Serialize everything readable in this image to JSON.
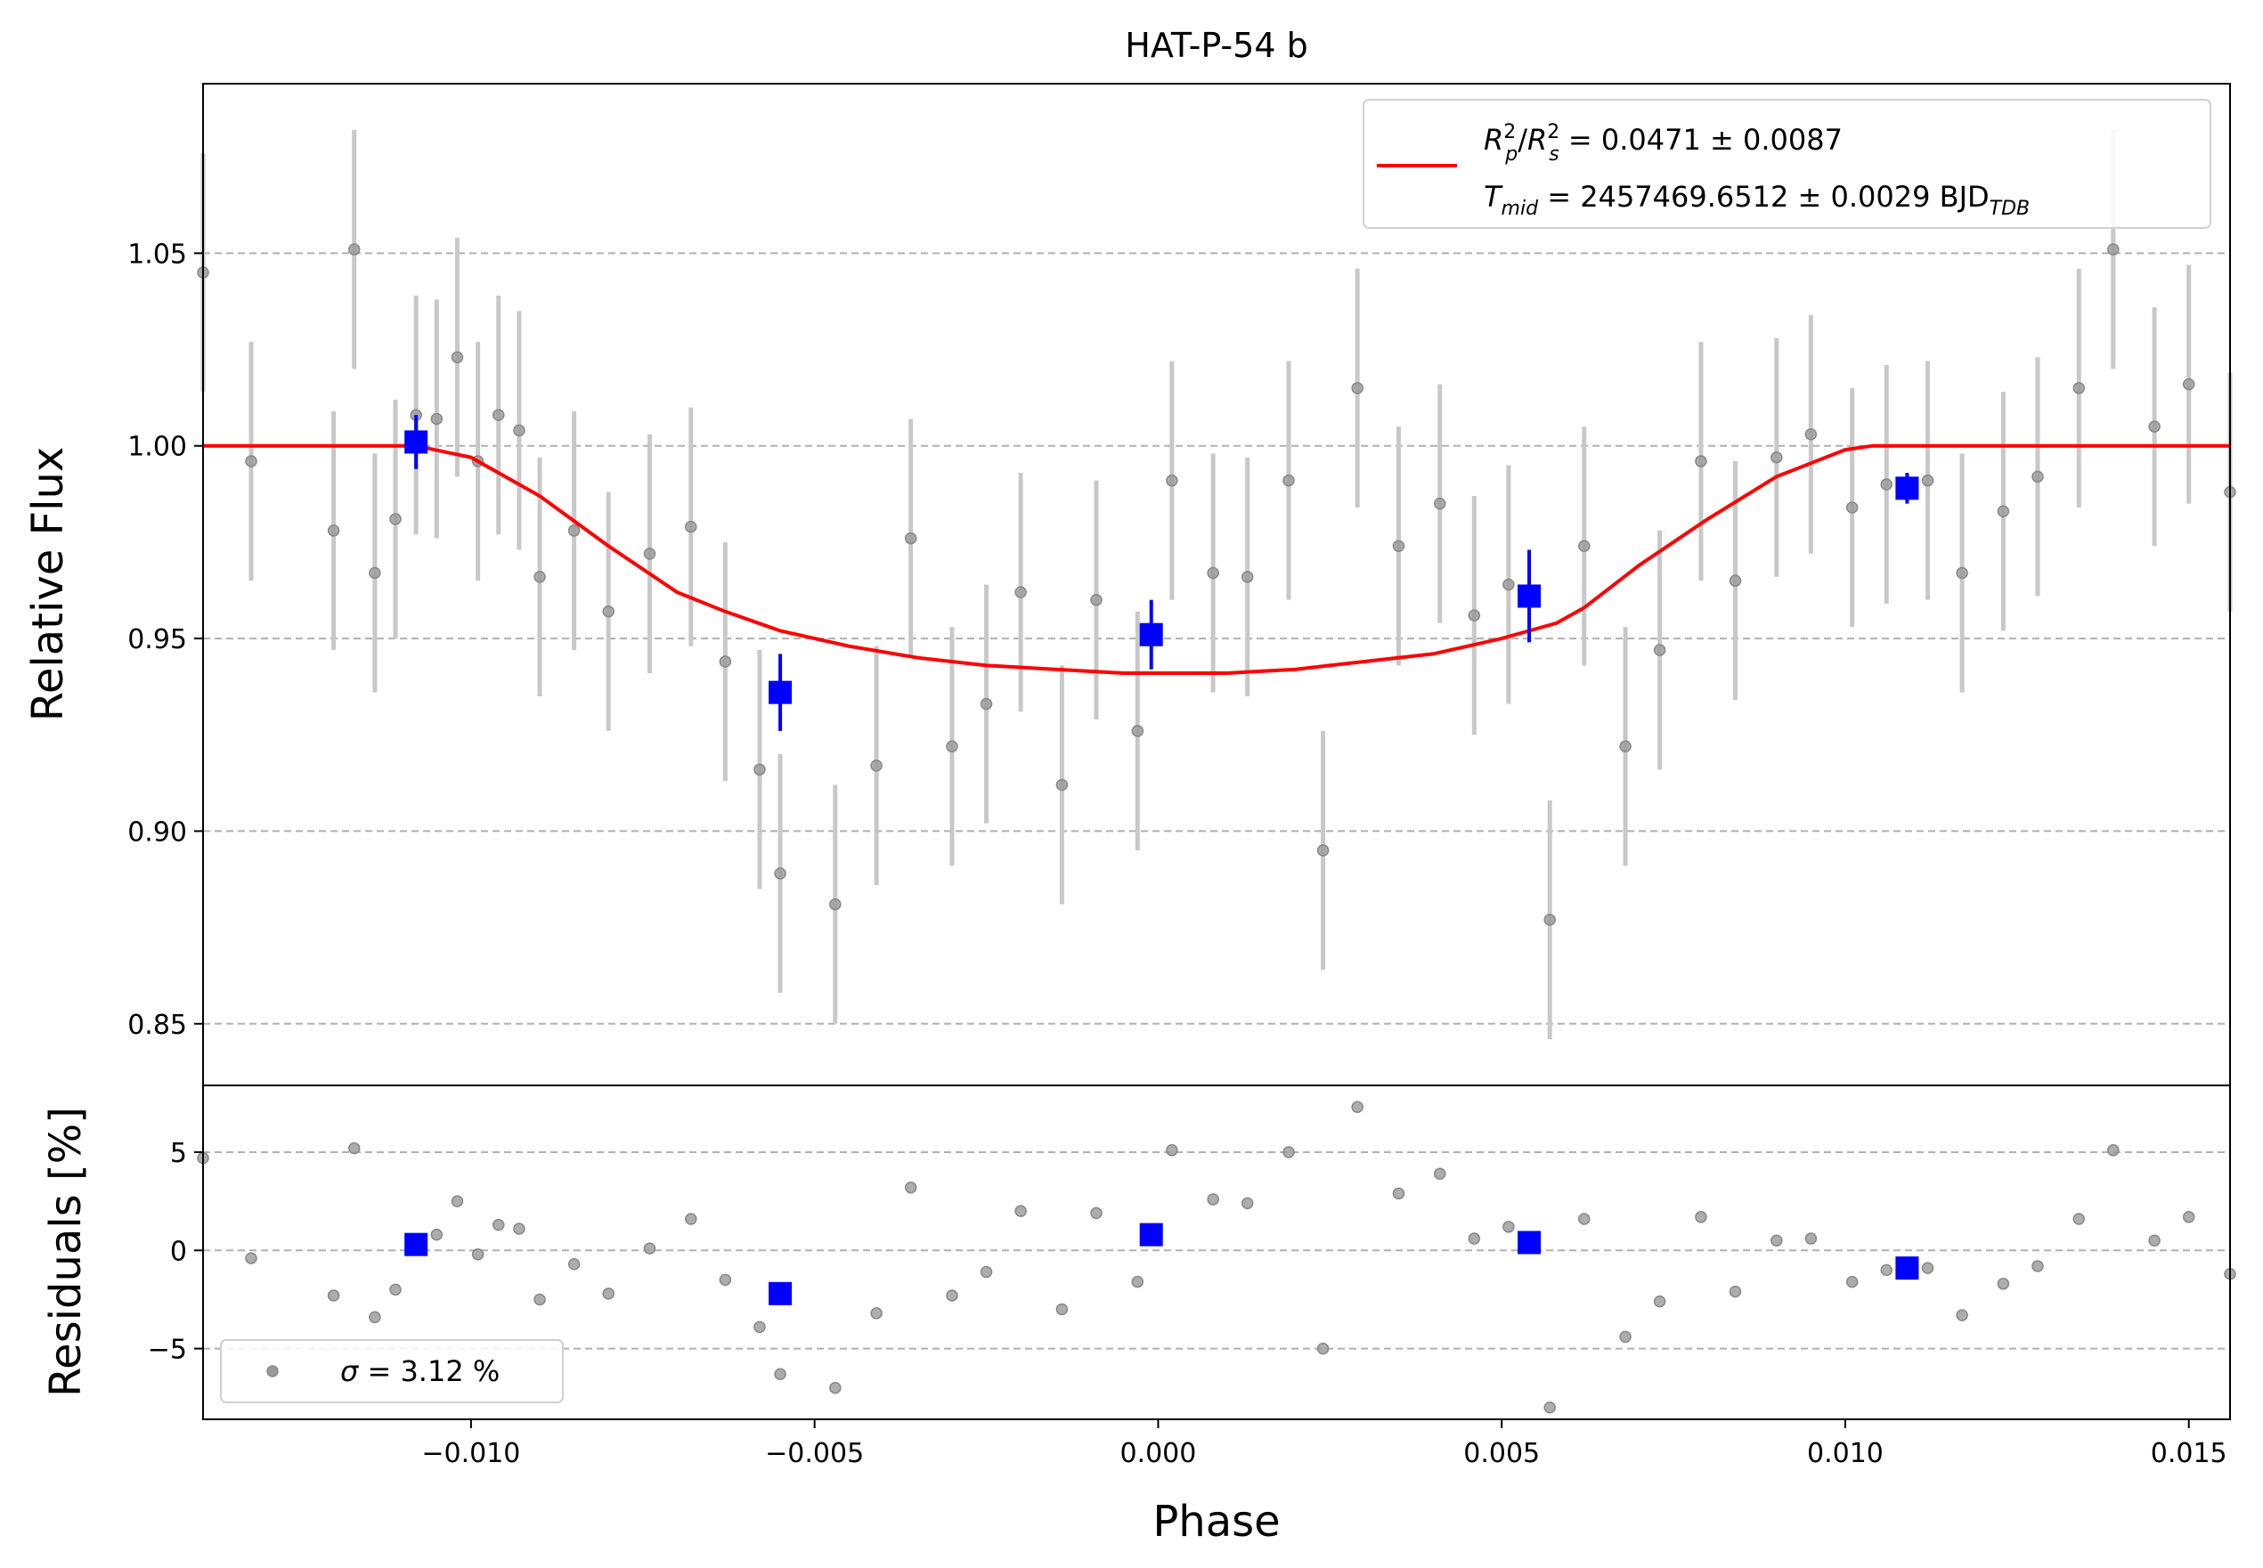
{
  "chart_data": [
    {
      "type": "scatter",
      "panel": "transit",
      "title": "HAT-P-54 b",
      "xlabel": "",
      "ylabel": "Relative Flux",
      "xlim": [
        -0.0139,
        0.0156
      ],
      "ylim": [
        0.834,
        1.094
      ],
      "xticks": [
        -0.01,
        -0.005,
        0.0,
        0.005,
        0.01,
        0.015
      ],
      "yticks": [
        0.85,
        0.9,
        0.95,
        1.0,
        1.05
      ],
      "ytick_labels": [
        "0.85",
        "0.90",
        "0.95",
        "1.00",
        "1.05"
      ],
      "grid": "y dashed",
      "legend": {
        "placement": "top-right",
        "line1_prefix": "R",
        "line1_p_sub": "p",
        "line1_sup": "2",
        "line1_s_sub": "s",
        "line1_rest": " = 0.0471 ± 0.0087",
        "line2_prefix": "T",
        "line2_sub": "mid",
        "line2_rest": " = 2457469.6512 ± 0.0029 BJD",
        "line2_tail_sub": "TDB"
      },
      "colors": {
        "data": "#808080",
        "errorbar": "#c8c8c8",
        "binned": "#0000ff",
        "model": "#ff0000",
        "grid": "#b0b0b0"
      },
      "series": [
        {
          "name": "",
          "kind": "raw",
          "x": [
            -0.0139,
            -0.0132,
            -0.012,
            -0.0117,
            -0.0114,
            -0.0111,
            -0.0108,
            -0.0105,
            -0.0102,
            -0.0099,
            -0.0096,
            -0.0093,
            -0.009,
            -0.0085,
            -0.008,
            -0.0074,
            -0.0068,
            -0.0063,
            -0.0058,
            -0.0055,
            -0.0047,
            -0.0041,
            -0.0036,
            -0.003,
            -0.0025,
            -0.002,
            -0.0014,
            -0.0009,
            -0.0003,
            0.0002,
            0.0008,
            0.0013,
            0.0019,
            0.0024,
            0.0029,
            0.0035,
            0.0041,
            0.0046,
            0.0051,
            0.0057,
            0.0062,
            0.0068,
            0.0073,
            0.0079,
            0.0084,
            0.009,
            0.0095,
            0.0101,
            0.0106,
            0.0112,
            0.0117,
            0.0123,
            0.0128,
            0.0134,
            0.0139,
            0.0145,
            0.015,
            0.0156
          ],
          "y": [
            1.045,
            0.996,
            0.978,
            1.051,
            0.967,
            0.981,
            1.008,
            1.007,
            1.023,
            0.996,
            1.008,
            1.004,
            0.966,
            0.978,
            0.957,
            0.972,
            0.979,
            0.944,
            0.916,
            0.889,
            0.881,
            0.917,
            0.976,
            0.922,
            0.933,
            0.962,
            0.912,
            0.96,
            0.926,
            0.991,
            0.967,
            0.966,
            0.991,
            0.895,
            1.015,
            0.974,
            0.985,
            0.956,
            0.964,
            0.877,
            0.974,
            0.922,
            0.947,
            0.996,
            0.965,
            0.997,
            1.003,
            0.984,
            0.99,
            0.991,
            0.967,
            0.983,
            0.992,
            1.015,
            1.051,
            1.005,
            1.016,
            0.988
          ],
          "yerr": 0.031
        },
        {
          "name": "",
          "kind": "binned",
          "x": [
            -0.0108,
            -0.0055,
            -0.0001,
            0.0054,
            0.0109
          ],
          "y": [
            1.001,
            0.936,
            0.951,
            0.961,
            0.989
          ],
          "yerr": [
            0.007,
            0.01,
            0.009,
            0.012,
            0.004
          ]
        },
        {
          "name": "",
          "kind": "model",
          "x": [
            -0.0139,
            -0.0108,
            -0.01,
            -0.009,
            -0.008,
            -0.007,
            -0.0063,
            -0.0055,
            -0.0045,
            -0.0035,
            -0.0025,
            -0.0015,
            -0.0005,
            0.0,
            0.001,
            0.002,
            0.003,
            0.004,
            0.005,
            0.0058,
            0.0062,
            0.007,
            0.008,
            0.009,
            0.01,
            0.0104,
            0.0156
          ],
          "y": [
            1.0,
            1.0,
            0.997,
            0.987,
            0.974,
            0.962,
            0.957,
            0.952,
            0.948,
            0.945,
            0.943,
            0.942,
            0.941,
            0.941,
            0.941,
            0.942,
            0.944,
            0.946,
            0.95,
            0.954,
            0.958,
            0.969,
            0.981,
            0.992,
            0.999,
            1.0,
            1.0
          ]
        }
      ]
    },
    {
      "type": "scatter",
      "panel": "residuals",
      "title": "",
      "xlabel": "Phase",
      "ylabel": "Residuals [%]",
      "xlim": [
        -0.0139,
        0.0156
      ],
      "ylim": [
        -8.6,
        8.4
      ],
      "xticks": [
        -0.01,
        -0.005,
        0.0,
        0.005,
        0.01,
        0.015
      ],
      "xtick_labels": [
        "−0.010",
        "−0.005",
        "0.000",
        "0.005",
        "0.010",
        "0.015"
      ],
      "yticks": [
        -5,
        0,
        5
      ],
      "ytick_labels": [
        "−5",
        "0",
        "5"
      ],
      "grid": "y dashed",
      "legend": {
        "placement": "bottom-left",
        "symbol": "σ",
        "text": " = 3.12 %"
      },
      "series": [
        {
          "name": "",
          "kind": "raw",
          "x": [
            -0.0139,
            -0.0132,
            -0.012,
            -0.0117,
            -0.0114,
            -0.0111,
            -0.0105,
            -0.0102,
            -0.0099,
            -0.0096,
            -0.0093,
            -0.009,
            -0.0085,
            -0.008,
            -0.0074,
            -0.0068,
            -0.0063,
            -0.0058,
            -0.0055,
            -0.0047,
            -0.0041,
            -0.0036,
            -0.003,
            -0.0025,
            -0.002,
            -0.0014,
            -0.0009,
            -0.0003,
            0.0002,
            0.0008,
            0.0013,
            0.0019,
            0.0024,
            0.0029,
            0.0035,
            0.0041,
            0.0046,
            0.0051,
            0.0057,
            0.0062,
            0.0068,
            0.0073,
            0.0079,
            0.0084,
            0.009,
            0.0095,
            0.0101,
            0.0106,
            0.0112,
            0.0117,
            0.0123,
            0.0128,
            0.0134,
            0.0139,
            0.0145,
            0.015,
            0.0156
          ],
          "y": [
            4.7,
            -0.4,
            -2.3,
            5.2,
            -3.4,
            -2.0,
            0.8,
            2.5,
            -0.2,
            1.3,
            1.1,
            -2.5,
            -0.7,
            -2.2,
            0.1,
            1.6,
            -1.5,
            -3.9,
            -6.3,
            -7.0,
            -3.2,
            3.2,
            -2.3,
            -1.1,
            2.0,
            -3.0,
            1.9,
            -1.6,
            5.1,
            2.6,
            2.4,
            5.0,
            -5.0,
            7.3,
            2.9,
            3.9,
            0.6,
            1.2,
            -8.0,
            1.6,
            -4.4,
            -2.6,
            1.7,
            -2.1,
            0.5,
            0.6,
            -1.6,
            -1.0,
            -0.9,
            -3.3,
            -1.7,
            -0.8,
            1.6,
            5.1,
            0.5,
            1.7,
            -1.2
          ]
        },
        {
          "name": "",
          "kind": "binned",
          "x": [
            -0.0108,
            -0.0055,
            -0.0001,
            0.0054,
            0.0109
          ],
          "y": [
            0.3,
            -2.2,
            0.8,
            0.4,
            -0.9
          ]
        }
      ]
    }
  ]
}
